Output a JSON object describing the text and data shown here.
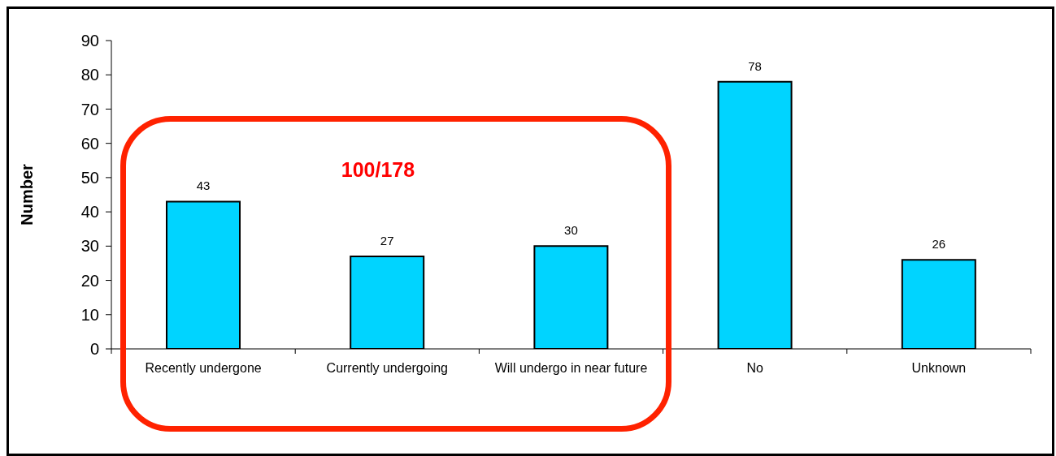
{
  "chart_data": {
    "type": "bar",
    "ylabel": "Number",
    "categories": [
      "Recently undergone",
      "Currently undergoing",
      "Will undergo in near future",
      "No",
      "Unknown"
    ],
    "values": [
      43,
      27,
      30,
      78,
      26
    ],
    "color": "#00d4ff",
    "ylim": [
      0,
      90
    ],
    "yticks": [
      0,
      10,
      20,
      30,
      40,
      50,
      60,
      70,
      80,
      90
    ],
    "data_labels": true,
    "annotations": [
      "100/178"
    ]
  }
}
